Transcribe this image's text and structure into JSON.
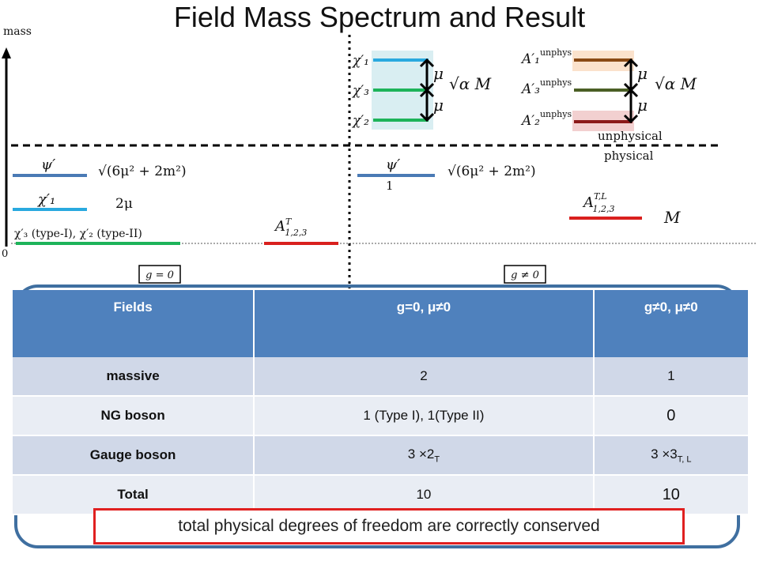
{
  "title": "Field Mass Spectrum and Result",
  "axis": {
    "ylabel": "mass",
    "origin": "0"
  },
  "left_panel": {
    "psi_label": "ψ′",
    "psi_mass": "√(6μ² + 2m²)",
    "chi1_label": "χ′₁",
    "chi1_mass": "2μ",
    "massless_label": "χ′₃ (type-I), χ′₂ (type-II)",
    "gauge_label": "A",
    "gauge_sup": "T",
    "gauge_sub": "1,2,3",
    "condition": "g = 0"
  },
  "right_panel": {
    "chi_labels": [
      "χ′₁",
      "χ′₃",
      "χ′₂"
    ],
    "mu": "μ",
    "sqrt_alpha_M": "√α M",
    "A_unphys": [
      "A′₁",
      "A′₃",
      "A′₂"
    ],
    "unphys_sup": "unphys",
    "unphysical": "unphysical",
    "physical": "physical",
    "psi_label": "ψ′",
    "psi_mass": "√(6μ² + 2m²)",
    "psi_count": "1",
    "gauge_label": "A",
    "gauge_sup": "T,L",
    "gauge_sub": "1,2,3",
    "gauge_mass": "M",
    "condition": "g ≠ 0"
  },
  "table": {
    "headers": [
      "Fields",
      "g=0, μ≠0",
      "g≠0, μ≠0"
    ],
    "rows": [
      {
        "field": "massive",
        "g0": "2",
        "gne0": "1"
      },
      {
        "field": "NG boson",
        "g0": "1 (Type I), 1(Type II)",
        "gne0": "0"
      },
      {
        "field": "Gauge boson",
        "g0": "3 ×2",
        "g0_sub": "T",
        "gne0": "3 ×3",
        "gne0_sub": "T, L"
      },
      {
        "field": "Total",
        "g0": "10",
        "gne0": "10"
      }
    ]
  },
  "conclusion": "total physical degrees of freedom are correctly conserved",
  "colors": {
    "psi": "#4a7ab5",
    "chi1": "#29a9df",
    "chi_green": "#1db35a",
    "gauge": "#d9201e",
    "brown": "#8a4a14",
    "olive": "#4b5f25",
    "darkred": "#8b1a1a",
    "header": "#4f81bd"
  }
}
